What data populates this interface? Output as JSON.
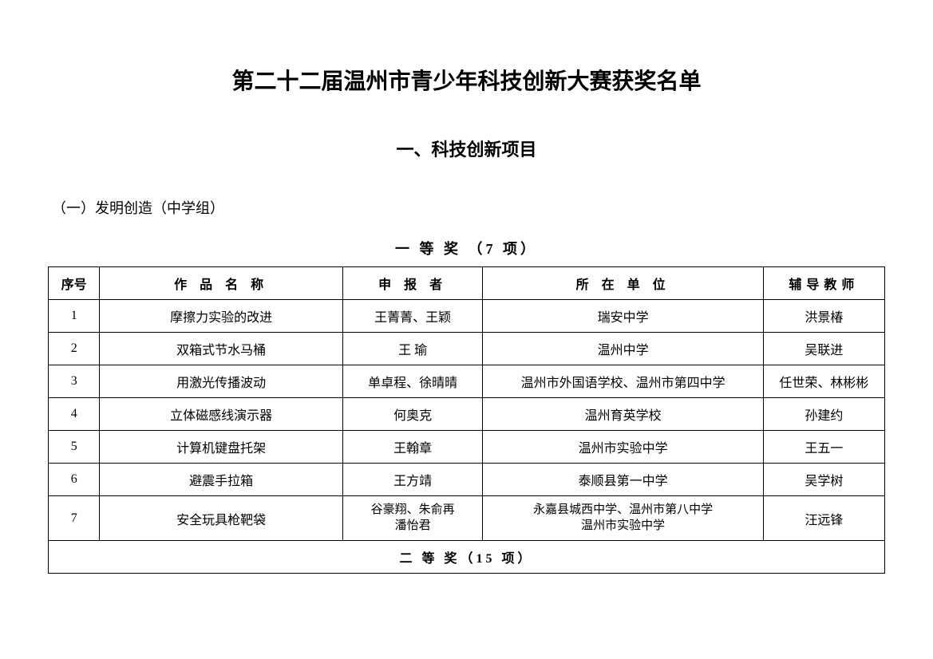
{
  "main_title": "第二十二届温州市青少年科技创新大赛获奖名单",
  "section_title": "一、科技创新项目",
  "sub_section": "（一）发明创造（中学组）",
  "award_title_1": "一 等 奖 （7 项）",
  "award_title_2": "二 等 奖（15 项）",
  "table": {
    "headers": {
      "seq": "序号",
      "name": "作 品 名 称",
      "applicant": "申 报 者",
      "unit": "所 在 单 位",
      "teacher": "辅导教师"
    },
    "rows": [
      {
        "seq": "1",
        "name": "摩擦力实验的改进",
        "applicant": "王菁菁、王颖",
        "unit": "瑞安中学",
        "teacher": "洪景椿"
      },
      {
        "seq": "2",
        "name": "双箱式节水马桶",
        "applicant": "王  瑜",
        "unit": "温州中学",
        "teacher": "吴联进"
      },
      {
        "seq": "3",
        "name": "用激光传播波动",
        "applicant": "单卓程、徐晴晴",
        "unit": "温州市外国语学校、温州市第四中学",
        "teacher": "任世荣、林彬彬"
      },
      {
        "seq": "4",
        "name": "立体磁感线演示器",
        "applicant": "何奥克",
        "unit": "温州育英学校",
        "teacher": "孙建约"
      },
      {
        "seq": "5",
        "name": "计算机键盘托架",
        "applicant": "王翰章",
        "unit": "温州市实验中学",
        "teacher": "王五一"
      },
      {
        "seq": "6",
        "name": "避震手拉箱",
        "applicant": "王方靖",
        "unit": "泰顺县第一中学",
        "teacher": "吴学树"
      },
      {
        "seq": "7",
        "name": "安全玩具枪靶袋",
        "applicant_line1": "谷豪翔、朱俞再",
        "applicant_line2": "潘怡君",
        "unit_line1": "永嘉县城西中学、温州市第八中学",
        "unit_line2": "温州市实验中学",
        "teacher": "汪远锋"
      }
    ]
  },
  "colors": {
    "background": "#ffffff",
    "border": "#000000",
    "text": "#000000"
  }
}
